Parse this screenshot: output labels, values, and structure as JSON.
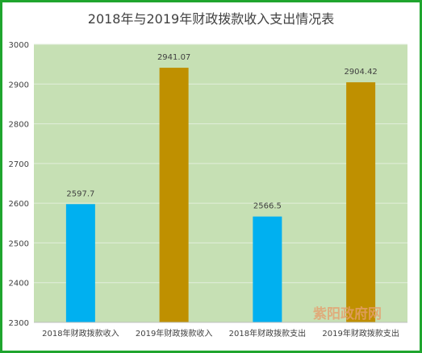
{
  "chart_data": {
    "type": "bar",
    "title": "2018年与2019年财政拨款收入支出情况表",
    "categories": [
      "2018年财政拨款收入",
      "2019年财政拨款收入",
      "2018年财政拨款支出",
      "2019年财政拨款支出"
    ],
    "values": [
      2597.7,
      2941.07,
      2566.5,
      2904.42
    ],
    "value_labels": [
      "2597.7",
      "2941.07",
      "2566.5",
      "2904.42"
    ],
    "bar_colors": [
      "#00b0f0",
      "#bf9000",
      "#00b0f0",
      "#bf9000"
    ],
    "yticks": [
      "2300",
      "2400",
      "2500",
      "2600",
      "2700",
      "2800",
      "2900",
      "3000"
    ],
    "ylim": [
      2300,
      3000
    ],
    "grid": true,
    "plot_background": "#c6e0b4",
    "frame_color": "#1fa52e"
  },
  "watermark": "紫阳政府网"
}
